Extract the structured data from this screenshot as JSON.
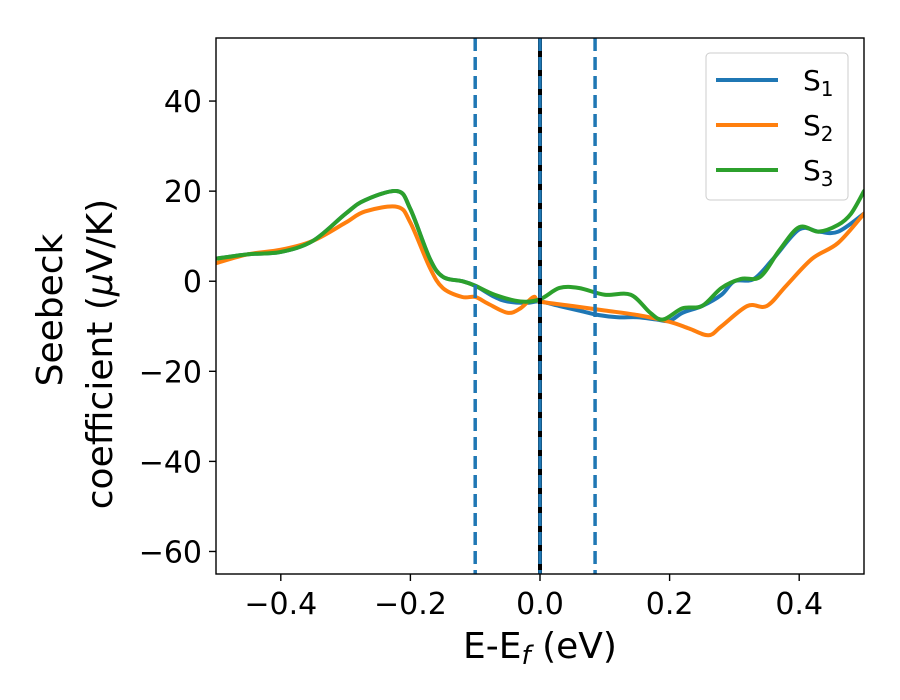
{
  "chart_data": {
    "type": "line",
    "title": "",
    "xlabel": "E-E",
    "xlabel_subscript": "f",
    "xlabel_unit": " (eV)",
    "ylabel_line1": "Seebeck",
    "ylabel_line2_prefix": "coefficient  (",
    "ylabel_mu": "μ",
    "ylabel_line2_suffix": "V/K)",
    "xlim": [
      -0.5,
      0.5
    ],
    "ylim": [
      -65,
      54
    ],
    "xticks": [
      -0.4,
      -0.2,
      0.0,
      0.2,
      0.4
    ],
    "xtick_labels": [
      "−0.4",
      "−0.2",
      "0.0",
      "0.2",
      "0.4"
    ],
    "yticks": [
      -60,
      -40,
      -20,
      0,
      20,
      40
    ],
    "ytick_labels": [
      "−60",
      "−40",
      "−20",
      "0",
      "20",
      "40"
    ],
    "grid": false,
    "legend_position": "top-right",
    "vlines": [
      {
        "x": -0.1,
        "style": "dashed",
        "color": "#1f77b4"
      },
      {
        "x": 0.0,
        "style": "solid",
        "color": "#000000"
      },
      {
        "x": 0.0,
        "style": "dashed",
        "color": "#1f77b4"
      },
      {
        "x": 0.085,
        "style": "dashed",
        "color": "#1f77b4"
      }
    ],
    "series": [
      {
        "name": "S",
        "subscript": "1",
        "color": "#1f77b4",
        "x": [
          -0.5,
          -0.45,
          -0.4,
          -0.35,
          -0.3,
          -0.27,
          -0.22,
          -0.2,
          -0.17,
          -0.15,
          -0.12,
          -0.1,
          -0.07,
          -0.05,
          -0.02,
          0.0,
          0.03,
          0.06,
          0.09,
          0.12,
          0.15,
          0.18,
          0.2,
          0.22,
          0.25,
          0.28,
          0.3,
          0.33,
          0.36,
          0.4,
          0.43,
          0.46,
          0.5
        ],
        "y": [
          5,
          6,
          6.5,
          9,
          15,
          18,
          20,
          16,
          5,
          1,
          0,
          -1,
          -3.5,
          -4.5,
          -4.8,
          -4.5,
          -5.5,
          -6.5,
          -7.5,
          -8,
          -8,
          -8.5,
          -8.8,
          -7,
          -5.5,
          -3,
          0,
          0.5,
          5,
          11.5,
          11,
          11,
          15
        ]
      },
      {
        "name": "S",
        "subscript": "2",
        "color": "#ff7f0e",
        "x": [
          -0.5,
          -0.45,
          -0.4,
          -0.35,
          -0.3,
          -0.27,
          -0.22,
          -0.2,
          -0.17,
          -0.15,
          -0.12,
          -0.1,
          -0.08,
          -0.05,
          -0.03,
          -0.01,
          0.0,
          0.05,
          0.1,
          0.15,
          0.2,
          0.23,
          0.26,
          0.28,
          0.32,
          0.35,
          0.38,
          0.42,
          0.46,
          0.5
        ],
        "y": [
          4,
          6,
          7,
          9,
          13,
          15.5,
          16.5,
          13,
          3,
          -1.5,
          -3.5,
          -3.5,
          -5,
          -7,
          -6,
          -3.5,
          -4.5,
          -5.5,
          -6.5,
          -7.5,
          -9,
          -10.5,
          -12,
          -10,
          -5.5,
          -5.5,
          -1,
          5,
          8.5,
          15
        ]
      },
      {
        "name": "S",
        "subscript": "3",
        "color": "#2ca02c",
        "x": [
          -0.5,
          -0.45,
          -0.4,
          -0.35,
          -0.3,
          -0.27,
          -0.22,
          -0.2,
          -0.17,
          -0.15,
          -0.12,
          -0.1,
          -0.07,
          -0.03,
          0.0,
          0.03,
          0.06,
          0.1,
          0.14,
          0.17,
          0.19,
          0.22,
          0.25,
          0.28,
          0.31,
          0.34,
          0.37,
          0.4,
          0.43,
          0.46,
          0.48,
          0.5
        ],
        "y": [
          5,
          6,
          6.5,
          9,
          15,
          18,
          20,
          16,
          5,
          1,
          0,
          -1,
          -3,
          -4.5,
          -4,
          -1.5,
          -1.5,
          -3,
          -3,
          -7,
          -8.5,
          -6,
          -5.5,
          -1.5,
          0.5,
          1,
          7,
          12,
          11,
          12.5,
          15,
          20
        ]
      }
    ]
  }
}
